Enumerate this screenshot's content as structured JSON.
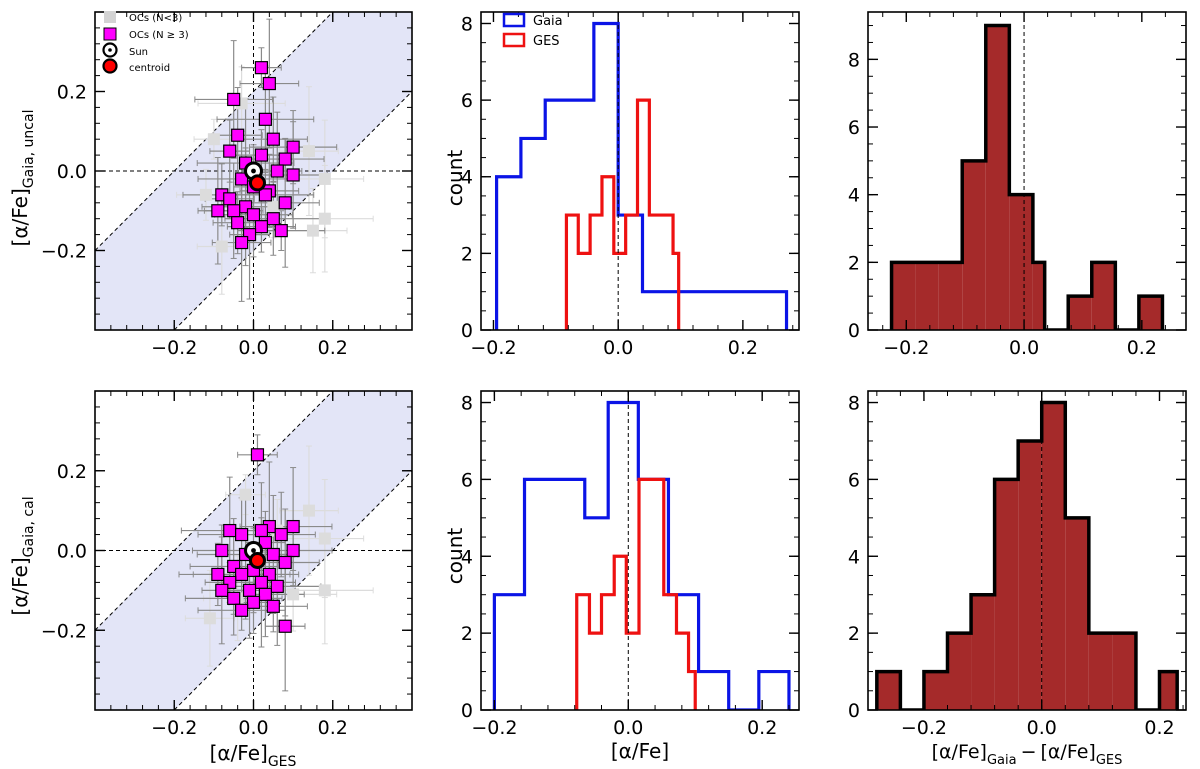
{
  "chart_data": [
    {
      "type": "scatter",
      "panel": "top-left",
      "xlim": [
        -0.4,
        0.4
      ],
      "ylim": [
        -0.4,
        0.4
      ],
      "xticks": [
        "−0.2",
        "0.0",
        "0.2"
      ],
      "xtick_values": [
        -0.2,
        0.0,
        0.2
      ],
      "yticks": [
        "−0.2",
        "0.0",
        "0.2"
      ],
      "ytick_values": [
        -0.2,
        0.0,
        0.2
      ],
      "xlabel": "",
      "ylabel_main": "[α/Fe]",
      "ylabel_sub": "Gaia, uncal",
      "band_halfwidth": 0.2,
      "legend": {
        "placement": "top-left",
        "labels": [
          "OCs (N<3)",
          "OCs (N ≥ 3)",
          "Sun",
          "centroid"
        ]
      },
      "sun": [
        0.0,
        0.0
      ],
      "centroid": [
        0.01,
        -0.03
      ],
      "gray_points": [
        [
          -0.1,
          0.08
        ],
        [
          0.14,
          0.05
        ],
        [
          0.18,
          -0.02
        ],
        [
          0.18,
          -0.12
        ],
        [
          -0.08,
          -0.19
        ],
        [
          0.15,
          -0.15
        ],
        [
          -0.03,
          0.17
        ],
        [
          0.05,
          -0.09
        ],
        [
          -0.12,
          -0.06
        ]
      ],
      "magenta_points": [
        [
          0.02,
          0.26
        ],
        [
          0.04,
          0.22
        ],
        [
          -0.05,
          0.18
        ],
        [
          0.03,
          0.13
        ],
        [
          -0.04,
          0.09
        ],
        [
          0.05,
          0.08
        ],
        [
          0.1,
          0.06
        ],
        [
          -0.06,
          0.05
        ],
        [
          0.02,
          0.04
        ],
        [
          0.08,
          0.03
        ],
        [
          -0.02,
          0.02
        ],
        [
          0.06,
          0.0
        ],
        [
          0.1,
          -0.01
        ],
        [
          -0.03,
          -0.02
        ],
        [
          0.0,
          -0.04
        ],
        [
          0.04,
          -0.05
        ],
        [
          -0.08,
          -0.06
        ],
        [
          0.03,
          -0.06
        ],
        [
          -0.06,
          -0.07
        ],
        [
          0.08,
          -0.08
        ],
        [
          -0.02,
          -0.09
        ],
        [
          -0.09,
          -0.1
        ],
        [
          -0.05,
          -0.1
        ],
        [
          0.0,
          -0.11
        ],
        [
          0.05,
          -0.12
        ],
        [
          -0.04,
          -0.13
        ],
        [
          0.02,
          -0.14
        ],
        [
          0.07,
          -0.15
        ],
        [
          -0.01,
          -0.16
        ],
        [
          -0.03,
          -0.18
        ]
      ]
    },
    {
      "type": "histogram",
      "panel": "top-middle",
      "xlim": [
        -0.22,
        0.29
      ],
      "ylim": [
        0,
        8.3
      ],
      "xticks": [
        "−0.2",
        "0.0",
        "0.2"
      ],
      "xtick_values": [
        -0.2,
        0.0,
        0.2
      ],
      "yticks": [
        "0",
        "2",
        "4",
        "6",
        "8"
      ],
      "ytick_values": [
        0,
        2,
        4,
        6,
        8
      ],
      "ylabel": "count",
      "xlabel": "",
      "vline": 0.0,
      "legend": {
        "placement": "top-left",
        "labels": [
          "Gaia",
          "GES"
        ]
      },
      "series": [
        {
          "name": "Gaia",
          "color": "#0b14e6",
          "edges": [
            -0.195,
            -0.156,
            -0.117,
            -0.078,
            -0.039,
            0.0,
            0.039,
            0.078,
            0.117,
            0.156,
            0.195,
            0.234,
            0.27
          ],
          "counts": [
            4,
            5,
            6,
            6,
            8,
            3,
            1,
            1,
            1,
            1,
            1,
            1
          ]
        },
        {
          "name": "GES",
          "color": "#ee1111",
          "edges": [
            -0.083,
            -0.064,
            -0.045,
            -0.026,
            -0.007,
            0.012,
            0.031,
            0.05,
            0.069,
            0.088,
            0.097
          ],
          "counts": [
            3,
            2,
            3,
            4,
            2,
            3,
            6,
            3,
            3,
            2
          ]
        }
      ]
    },
    {
      "type": "histogram",
      "panel": "top-right",
      "xlim": [
        -0.265,
        0.275
      ],
      "ylim": [
        0,
        9.4
      ],
      "xticks": [
        "−0.2",
        "0.0",
        "0.2"
      ],
      "xtick_values": [
        -0.2,
        0.0,
        0.2
      ],
      "yticks": [
        "0",
        "2",
        "4",
        "6",
        "8"
      ],
      "ytick_values": [
        0,
        2,
        4,
        6,
        8
      ],
      "xlabel": "",
      "ylabel": "",
      "vline": 0.0,
      "fill": "#a52a2a",
      "edges": [
        -0.225,
        -0.185,
        -0.145,
        -0.105,
        -0.065,
        -0.025,
        0.015,
        0.035,
        0.075,
        0.115,
        0.155,
        0.195,
        0.235
      ],
      "counts": [
        2,
        2,
        2,
        5,
        9,
        4,
        2,
        0,
        1,
        2,
        0,
        1
      ]
    },
    {
      "type": "scatter",
      "panel": "bottom-left",
      "xlim": [
        -0.4,
        0.4
      ],
      "ylim": [
        -0.4,
        0.4
      ],
      "xticks": [
        "−0.2",
        "0.0",
        "0.2"
      ],
      "xtick_values": [
        -0.2,
        0.0,
        0.2
      ],
      "yticks": [
        "−0.2",
        "0.0",
        "0.2"
      ],
      "ytick_values": [
        -0.2,
        0.0,
        0.2
      ],
      "xlabel_main": "[α/Fe]",
      "xlabel_sub": "GES",
      "ylabel_main": "[α/Fe]",
      "ylabel_sub": "Gaia, cal",
      "band_halfwidth": 0.2,
      "sun": [
        0.0,
        0.0
      ],
      "centroid": [
        0.01,
        -0.025
      ],
      "gray_points": [
        [
          -0.02,
          0.14
        ],
        [
          0.14,
          0.1
        ],
        [
          0.18,
          0.03
        ],
        [
          0.18,
          -0.1
        ],
        [
          -0.11,
          -0.17
        ],
        [
          -0.04,
          -0.12
        ],
        [
          0.1,
          -0.11
        ],
        [
          0.06,
          0.05
        ]
      ],
      "magenta_points": [
        [
          0.01,
          0.24
        ],
        [
          0.04,
          0.06
        ],
        [
          0.1,
          0.06
        ],
        [
          -0.06,
          0.05
        ],
        [
          0.02,
          0.05
        ],
        [
          0.07,
          0.04
        ],
        [
          -0.03,
          0.04
        ],
        [
          0.03,
          0.02
        ],
        [
          -0.08,
          0.0
        ],
        [
          0.1,
          0.0
        ],
        [
          -0.02,
          -0.01
        ],
        [
          0.05,
          -0.01
        ],
        [
          0.08,
          -0.03
        ],
        [
          -0.05,
          -0.04
        ],
        [
          0.0,
          -0.05
        ],
        [
          0.04,
          -0.06
        ],
        [
          -0.09,
          -0.06
        ],
        [
          -0.03,
          -0.06
        ],
        [
          -0.06,
          -0.08
        ],
        [
          0.02,
          -0.08
        ],
        [
          0.06,
          -0.09
        ],
        [
          -0.08,
          -0.1
        ],
        [
          -0.01,
          -0.1
        ],
        [
          0.03,
          -0.11
        ],
        [
          -0.05,
          -0.12
        ],
        [
          0.0,
          -0.13
        ],
        [
          0.05,
          -0.14
        ],
        [
          -0.03,
          -0.15
        ],
        [
          0.08,
          -0.19
        ]
      ]
    },
    {
      "type": "histogram",
      "panel": "bottom-middle",
      "xlim": [
        -0.22,
        0.255
      ],
      "ylim": [
        0,
        8.3
      ],
      "xticks": [
        "−0.2",
        "0.0",
        "0.2"
      ],
      "xtick_values": [
        -0.2,
        0.0,
        0.2
      ],
      "yticks": [
        "0",
        "2",
        "4",
        "6",
        "8"
      ],
      "ytick_values": [
        0,
        2,
        4,
        6,
        8
      ],
      "ylabel": "count",
      "xlabel": "[α/Fe]",
      "vline": 0.0,
      "series": [
        {
          "name": "Gaia",
          "color": "#0b14e6",
          "edges": [
            -0.2,
            -0.155,
            -0.11,
            -0.065,
            -0.03,
            0.015,
            0.06,
            0.105,
            0.15,
            0.195,
            0.24
          ],
          "counts": [
            3,
            6,
            6,
            5,
            8,
            6,
            3,
            1,
            0,
            1
          ]
        },
        {
          "name": "GES",
          "color": "#ee1111",
          "edges": [
            -0.077,
            -0.058,
            -0.04,
            -0.021,
            -0.003,
            0.016,
            0.034,
            0.053,
            0.072,
            0.09,
            0.1
          ],
          "counts": [
            3,
            2,
            3,
            4,
            2,
            6,
            6,
            3,
            2,
            1
          ]
        }
      ]
    },
    {
      "type": "histogram",
      "panel": "bottom-right",
      "xlim": [
        -0.295,
        0.245
      ],
      "ylim": [
        0,
        8.3
      ],
      "xticks": [
        "−0.2",
        "0.0",
        "0.2"
      ],
      "xtick_values": [
        -0.2,
        0.0,
        0.2
      ],
      "yticks": [
        "0",
        "2",
        "4",
        "6",
        "8"
      ],
      "ytick_values": [
        0,
        2,
        4,
        6,
        8
      ],
      "ylabel": "",
      "xlabel_a": "[α/Fe]",
      "xlabel_a_sub": "Gaia",
      "xlabel_minus": "−",
      "xlabel_b": "[α/Fe]",
      "xlabel_b_sub": "GES",
      "vline": 0.0,
      "fill": "#a52a2a",
      "edges": [
        -0.28,
        -0.24,
        -0.2,
        -0.16,
        -0.12,
        -0.08,
        -0.04,
        0.0,
        0.04,
        0.08,
        0.12,
        0.16,
        0.2,
        0.23
      ],
      "counts": [
        1,
        0,
        1,
        2,
        3,
        6,
        7,
        8,
        5,
        2,
        2,
        0,
        1
      ]
    }
  ]
}
